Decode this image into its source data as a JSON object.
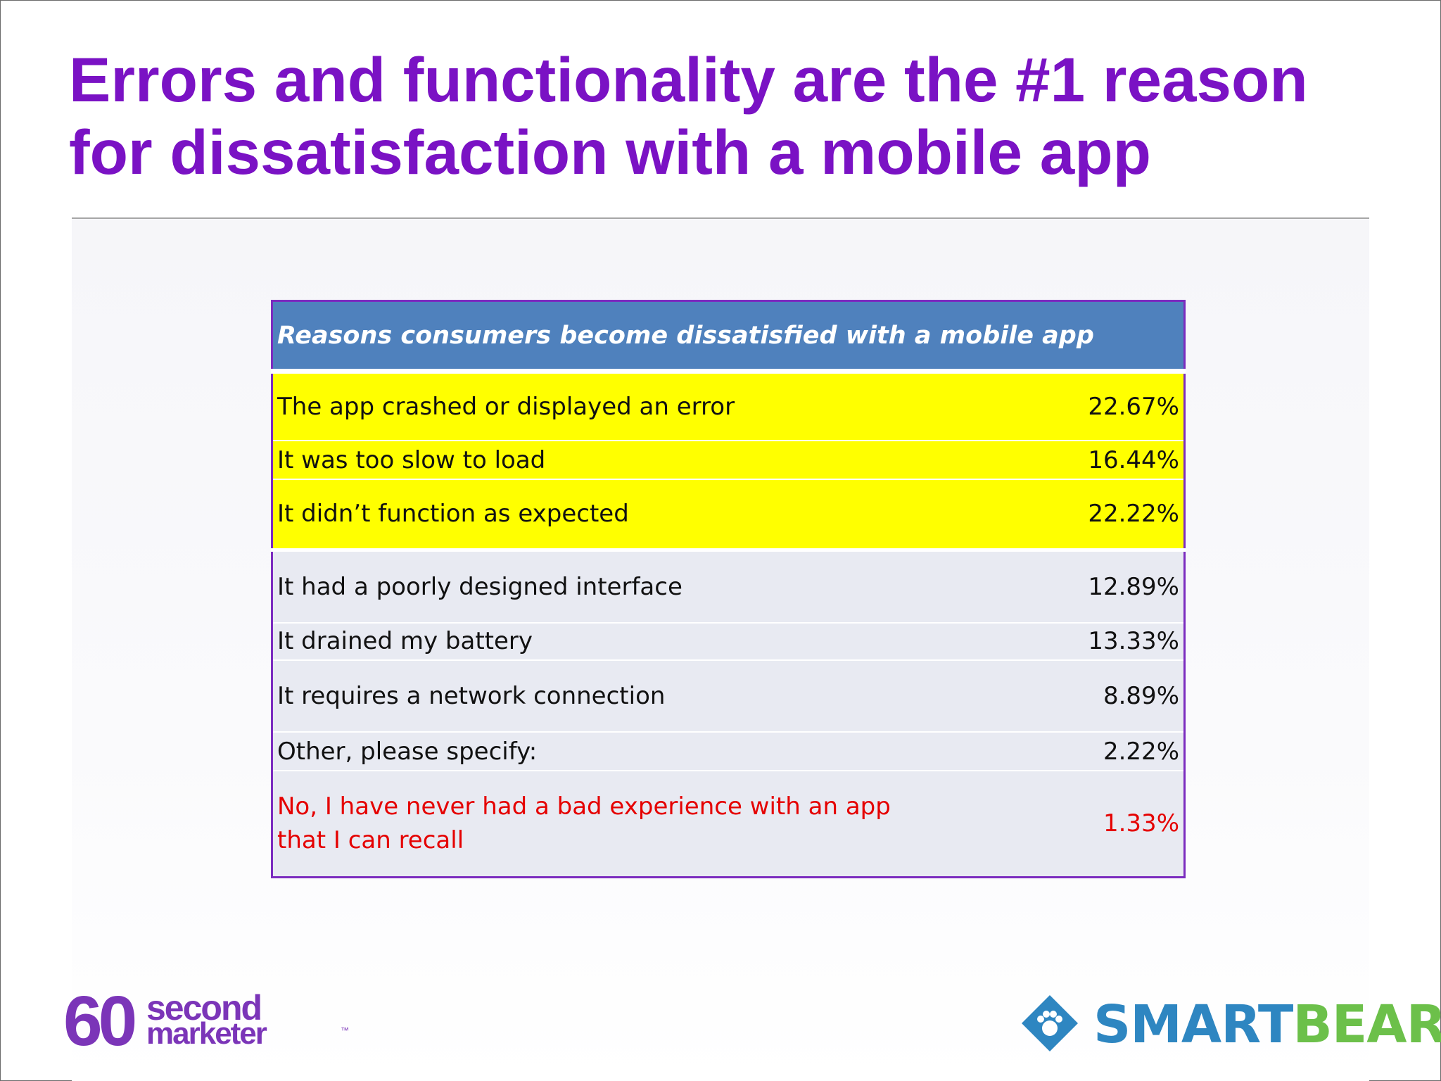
{
  "slide": {
    "title": "Errors and functionality are the #1 reason for dissatisfaction with a mobile app"
  },
  "table": {
    "header": "Reasons consumers become dissatisfied with a mobile app",
    "rows": [
      {
        "label": "The app crashed or displayed an error",
        "value": "22.67%",
        "highlight": "yellow"
      },
      {
        "label": "It was too slow to load",
        "value": "16.44%",
        "highlight": "yellow"
      },
      {
        "label": "It didn’t function as expected",
        "value": "22.22%",
        "highlight": "yellow"
      },
      {
        "label": "It had a poorly designed interface",
        "value": "12.89%",
        "highlight": "gray"
      },
      {
        "label": "It drained my battery",
        "value": "13.33%",
        "highlight": "gray"
      },
      {
        "label": "It requires a network connection",
        "value": "8.89%",
        "highlight": "gray"
      },
      {
        "label": "Other, please specify:",
        "value": "2.22%",
        "highlight": "gray"
      },
      {
        "label": "No, I have never had a bad experience with an app that I can recall",
        "value": "1.33%",
        "highlight": "gray",
        "text_color": "#e50000"
      }
    ]
  },
  "logos": {
    "left": {
      "digits": "60",
      "word1": "second",
      "word2": "marketer",
      "mark": "™",
      "color": "#7b35b8"
    },
    "right": {
      "part1": "SMART",
      "part2": "BEAR",
      "icon": "paw-diamond-icon",
      "colors": [
        "#2e86c1",
        "#6cc04a"
      ]
    }
  },
  "colors": {
    "title": "#7a12c4",
    "table_header": "#4f81bd",
    "highlight_yellow": "#ffff00",
    "row_gray": "#e8eaf2",
    "table_border": "#7b2cbf"
  }
}
